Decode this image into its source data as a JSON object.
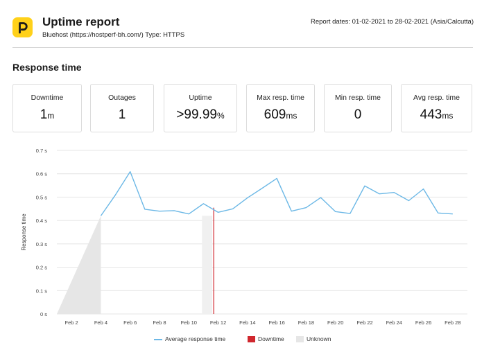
{
  "header": {
    "title": "Uptime report",
    "subtitle": "Bluehost (https://hostperf-bh.com/) Type: HTTPS",
    "report_dates": "Report dates: 01-02-2021 to 28-02-2021 (Asia/Calcutta)",
    "logo_icon": "bluehost-p-logo-icon"
  },
  "section_title": "Response time",
  "stats": [
    {
      "label": "Downtime",
      "value": "1",
      "unit": "m"
    },
    {
      "label": "Outages",
      "value": "1",
      "unit": ""
    },
    {
      "label": "Uptime",
      "value": ">99.99",
      "unit": "%"
    },
    {
      "label": "Max resp. time",
      "value": "609",
      "unit": "ms"
    },
    {
      "label": "Min resp. time",
      "value": "0",
      "unit": ""
    },
    {
      "label": "Avg resp. time",
      "value": "443",
      "unit": "ms"
    }
  ],
  "colors": {
    "line": "#6cb8e6",
    "downtime": "#d0272e",
    "unknown": "#e6e6e6",
    "grid": "#e4e4e4",
    "logo": "#ffd11a"
  },
  "chart_data": {
    "type": "line",
    "ylabel": "Response time",
    "ylim": [
      0,
      0.7
    ],
    "yticks": [
      "0 s",
      "0.1 s",
      "0.2 s",
      "0.3 s",
      "0.4 s",
      "0.5 s",
      "0.6 s",
      "0.7 s"
    ],
    "xticks": [
      "Feb 2",
      "Feb 4",
      "Feb 6",
      "Feb 8",
      "Feb 10",
      "Feb 12",
      "Feb 14",
      "Feb 16",
      "Feb 18",
      "Feb 20",
      "Feb 22",
      "Feb 24",
      "Feb 26",
      "Feb 28"
    ],
    "grid": true,
    "series": [
      {
        "name": "Average response time",
        "x": [
          4,
          5,
          6,
          7,
          8,
          9,
          10,
          11,
          12,
          13,
          14,
          15,
          16,
          17,
          18,
          19,
          20,
          21,
          22,
          23,
          24,
          25,
          26,
          27,
          28
        ],
        "y": [
          0.42,
          0.51,
          0.609,
          0.448,
          0.44,
          0.442,
          0.428,
          0.472,
          0.435,
          0.45,
          0.497,
          0.538,
          0.58,
          0.44,
          0.455,
          0.498,
          0.438,
          0.43,
          0.548,
          0.514,
          0.52,
          0.485,
          0.535,
          0.432,
          0.428
        ]
      }
    ],
    "unknown_regions": [
      {
        "from": 1,
        "to": 4,
        "shape": "ramp"
      },
      {
        "from": 10.9,
        "to": 11.6,
        "shape": "band"
      }
    ],
    "downtime_markers": [
      11.7
    ],
    "legend": {
      "position": "bottom-center",
      "items": [
        {
          "label": "Average response time",
          "kind": "line"
        },
        {
          "label": "Downtime",
          "kind": "downtime"
        },
        {
          "label": "Unknown",
          "kind": "unknown"
        }
      ]
    }
  }
}
